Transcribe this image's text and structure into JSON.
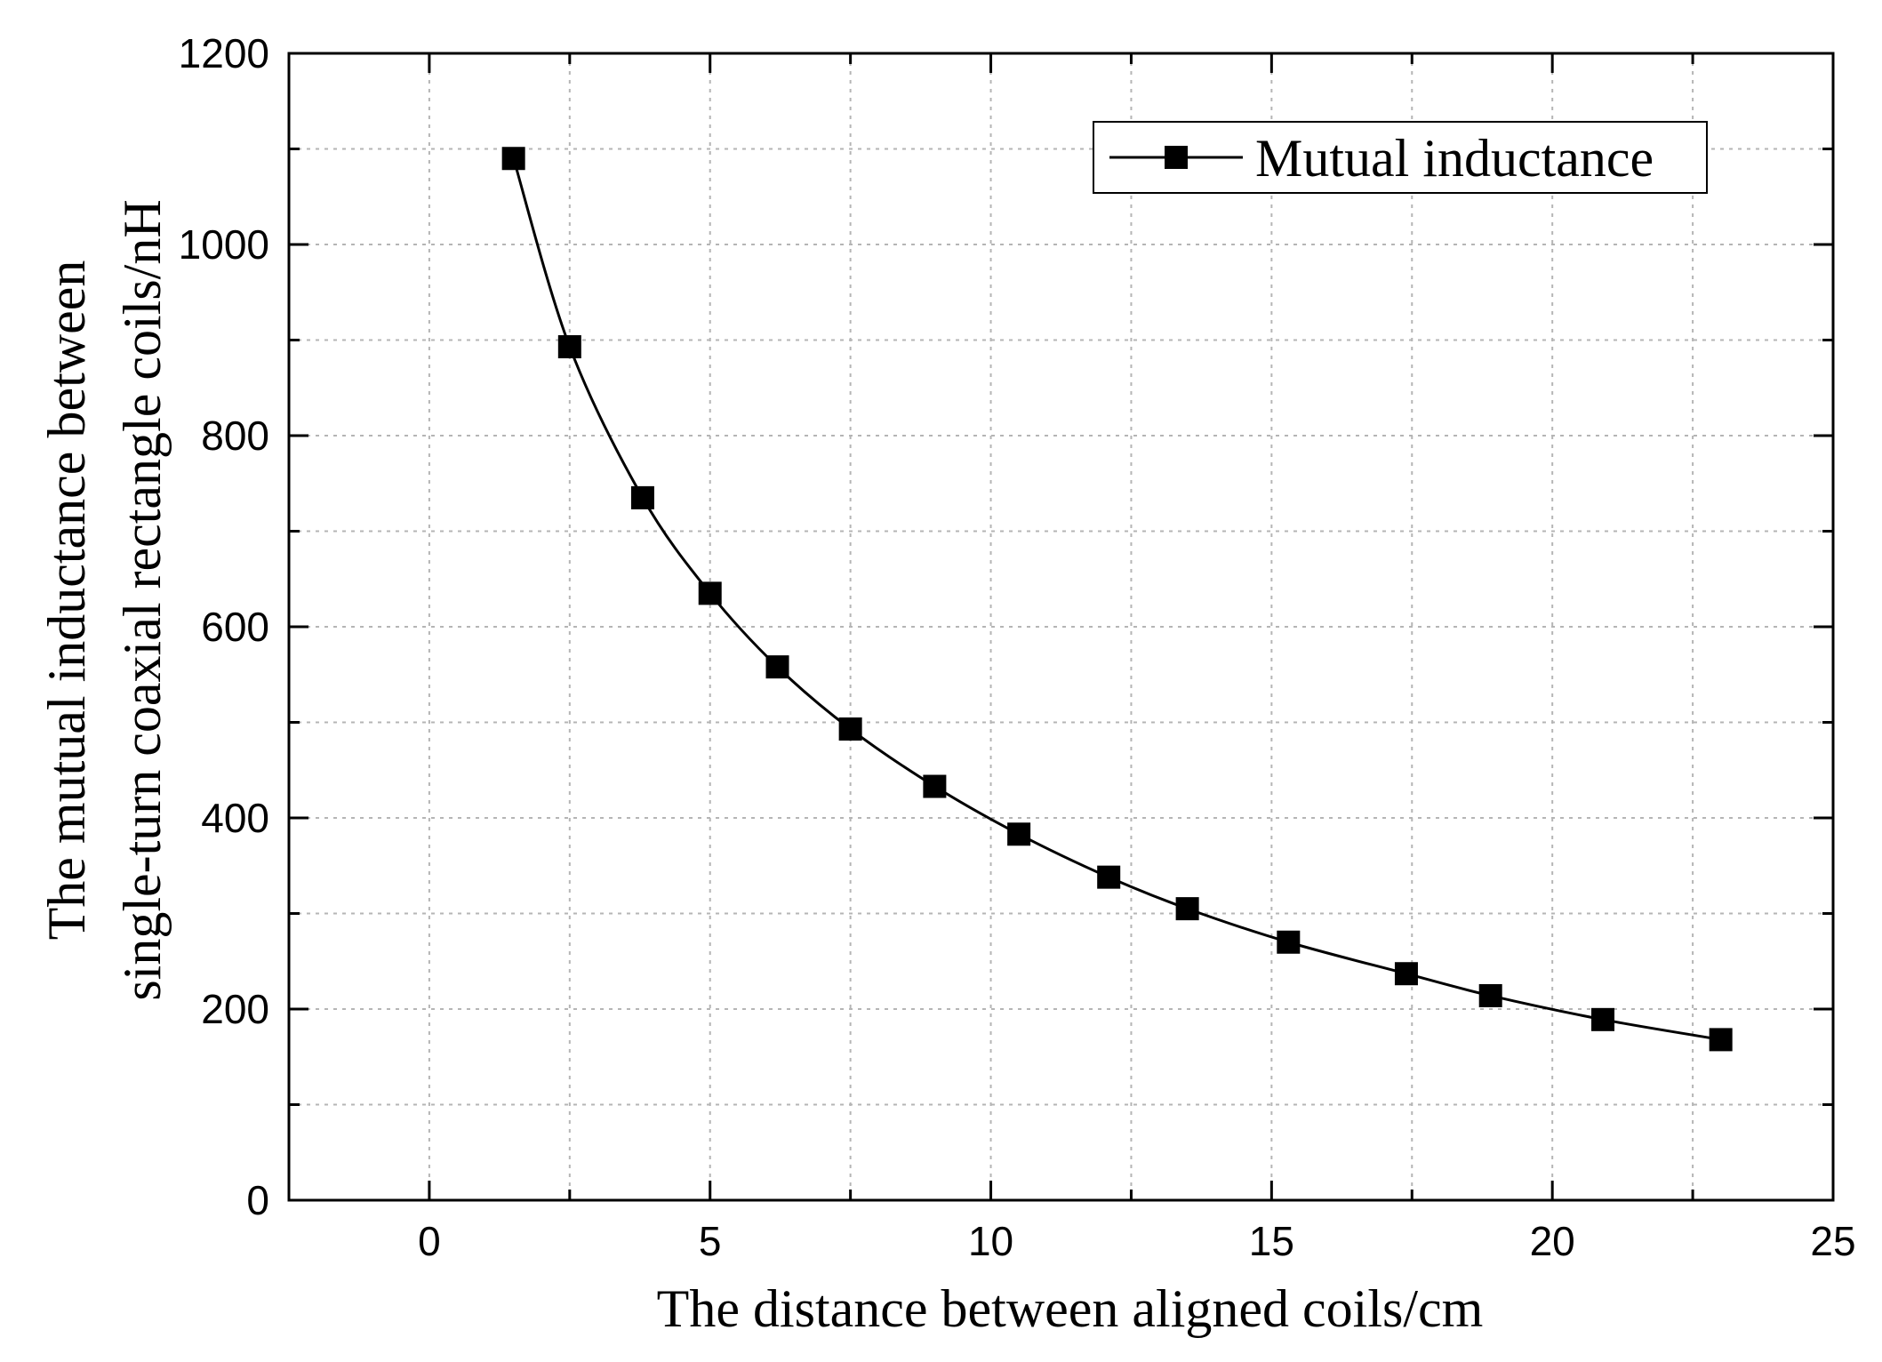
{
  "chart_data": {
    "type": "line",
    "title": "",
    "xlabel": "The distance between aligned coils/cm",
    "ylabel": [
      "The mutual inductance between",
      "single-turn coaxial rectangle coils/nH"
    ],
    "xlim": [
      -2.5,
      25
    ],
    "ylim": [
      0,
      1200
    ],
    "x_ticks": [
      0,
      5,
      10,
      15,
      20,
      25
    ],
    "y_ticks": [
      0,
      200,
      400,
      600,
      800,
      1000,
      1200
    ],
    "x_minor_step": 2.5,
    "y_minor_step": 100,
    "grid": true,
    "legend_position": "top-right",
    "series": [
      {
        "name": "Mutual inductance",
        "marker": "square",
        "color": "#000000",
        "x": [
          1.5,
          2.5,
          3.8,
          5.0,
          6.2,
          7.5,
          9.0,
          10.5,
          12.1,
          13.5,
          15.3,
          17.4,
          18.9,
          20.9,
          23.0
        ],
        "y": [
          1090,
          893,
          735,
          635,
          558,
          493,
          433,
          383,
          338,
          305,
          270,
          237,
          214,
          189,
          168
        ]
      }
    ]
  }
}
